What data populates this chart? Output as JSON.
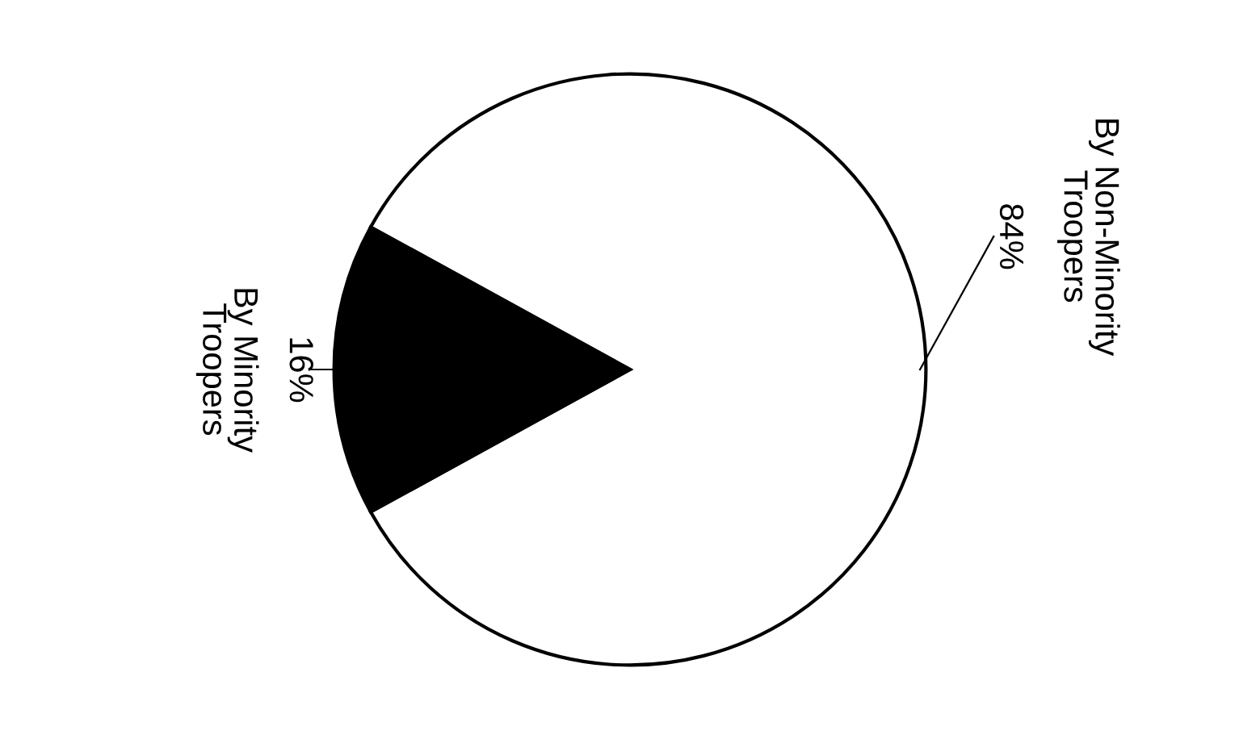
{
  "chart_data": {
    "type": "pie",
    "categories": [
      "By Non-Minority Troopers",
      "By Minority Troopers"
    ],
    "values": [
      84,
      16
    ],
    "colors": [
      "#ffffff",
      "#000000"
    ],
    "value_labels": [
      "84%",
      "16%"
    ]
  }
}
